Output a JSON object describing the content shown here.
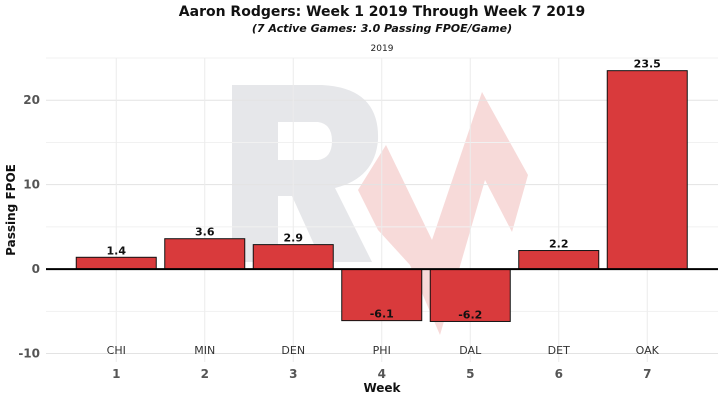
{
  "chart_data": {
    "type": "bar",
    "title": "Aaron Rodgers: Week 1 2019 Through Week 7 2019",
    "subtitle": "(7 Active Games: 3.0 Passing FPOE/Game)",
    "caption": "2019",
    "xlabel": "Week",
    "ylabel": "Passing FPOE",
    "categories": [
      "1",
      "2",
      "3",
      "4",
      "5",
      "6",
      "7"
    ],
    "opponents": [
      "CHI",
      "MIN",
      "DEN",
      "PHI",
      "DAL",
      "DET",
      "OAK"
    ],
    "values": [
      1.4,
      3.6,
      2.9,
      -6.1,
      -6.2,
      2.2,
      23.5
    ],
    "value_labels": [
      "1.4",
      "3.6",
      "2.9",
      "-6.1",
      "-6.2",
      "2.2",
      "23.5"
    ],
    "yticks": [
      "-10",
      "0",
      "10",
      "20"
    ],
    "ylim": [
      -11,
      25
    ],
    "grid": true,
    "bar_color": "#d93a3c",
    "bar_edge_color": "#111111",
    "watermark_color": "#e6e7ea",
    "watermark_accent_color": "#f6d4d2"
  }
}
